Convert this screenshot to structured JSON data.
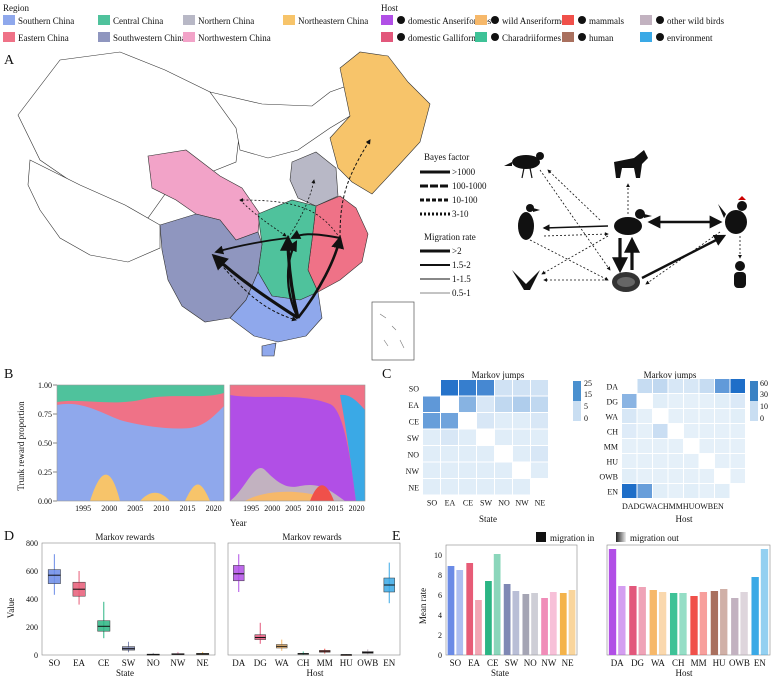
{
  "legend": {
    "region_title": "Region",
    "regions": [
      {
        "label": "Southern China",
        "color": "#8fa8ec"
      },
      {
        "label": "Central China",
        "color": "#4fc29c"
      },
      {
        "label": "Northern China",
        "color": "#b8b8c6"
      },
      {
        "label": "Northeastern China",
        "color": "#f7c46a"
      },
      {
        "label": "Eastern China",
        "color": "#ef7287"
      },
      {
        "label": "Southwestern China",
        "color": "#8f96bf"
      },
      {
        "label": "Northwestern China",
        "color": "#f2a3c8"
      }
    ],
    "host_title": "Host",
    "hosts": [
      {
        "label": "domestic Anseriformes",
        "color": "#b14fe6",
        "icon": "duck-icon"
      },
      {
        "label": "wild Anseriformes",
        "color": "#f6b86a",
        "icon": "wild-duck-icon"
      },
      {
        "label": "mammals",
        "color": "#f0504a",
        "icon": "wolf-icon"
      },
      {
        "label": "other wild birds",
        "color": "#c2b2c0",
        "icon": "bird-icon"
      },
      {
        "label": "domestic Galliformes",
        "color": "#e2577b",
        "icon": "rooster-icon"
      },
      {
        "label": "Charadriiformes",
        "color": "#3ec297",
        "icon": "shorebird-icon"
      },
      {
        "label": "human",
        "color": "#a9705e",
        "icon": "human-icon"
      },
      {
        "label": "environment",
        "color": "#3aa9e6",
        "icon": "environment-icon"
      }
    ]
  },
  "panels": {
    "a": "A",
    "b": "B",
    "c": "C",
    "d": "D",
    "e": "E"
  },
  "bayes": {
    "title": "Bayes factor",
    "items": [
      ">1000",
      "100-1000",
      "10-100",
      "3-10"
    ],
    "migration_title": "Migration rate",
    "migration_items": [
      ">2",
      "1.5-2",
      "1-1.5",
      "0.5-1"
    ]
  },
  "panel_b": {
    "ylabel": "Trunk reward proportion",
    "xlabel": "Year",
    "yticks": [
      "1.00",
      "0.75",
      "0.50",
      "0.25",
      "0.00"
    ],
    "xticks_left": [
      "1995",
      "2000",
      "2005",
      "2010",
      "2015",
      "2020"
    ],
    "xticks_right": [
      "1995",
      "2000",
      "2005",
      "2010",
      "2015",
      "2020"
    ]
  },
  "panel_c": {
    "title_left": "Markov jumps",
    "title_right": "Markov jumps",
    "xlabel_left": "State",
    "xlabel_right": "Host",
    "state_labels": [
      "SO",
      "EA",
      "CE",
      "SW",
      "NO",
      "NW",
      "NE"
    ],
    "host_labels": [
      "DA",
      "DG",
      "WA",
      "CH",
      "MM",
      "HU",
      "OWB",
      "EN"
    ],
    "host_xtick_text": "DADGWACHMMHUOWBEN",
    "scale_left": [
      "25",
      "15",
      "5",
      "0"
    ],
    "scale_right": [
      "60",
      "30",
      "10",
      "0"
    ]
  },
  "chart_data": [
    {
      "type": "heatmap",
      "title": "Markov jumps",
      "rows": [
        "SO",
        "EA",
        "CE",
        "SW",
        "NO",
        "NW",
        "NE"
      ],
      "cols": [
        "SO",
        "EA",
        "CE",
        "SW",
        "NO",
        "NW",
        "NE"
      ],
      "values": [
        [
          0,
          24,
          22,
          20,
          3,
          3,
          3
        ],
        [
          17,
          0,
          12,
          2,
          5,
          7,
          5
        ],
        [
          16,
          15,
          0,
          2,
          1,
          1,
          2
        ],
        [
          1,
          2,
          1,
          0,
          1,
          1,
          1
        ],
        [
          1,
          1,
          1,
          1,
          0,
          1,
          2
        ],
        [
          1,
          1,
          1,
          1,
          1,
          0,
          1
        ],
        [
          1,
          1,
          1,
          1,
          1,
          1,
          0
        ]
      ],
      "range": [
        0,
        25
      ]
    },
    {
      "type": "heatmap",
      "title": "Markov jumps",
      "rows": [
        "DA",
        "DG",
        "WA",
        "CH",
        "MM",
        "HU",
        "OWB",
        "EN"
      ],
      "cols": [
        "DA",
        "DG",
        "WA",
        "CH",
        "MM",
        "HU",
        "OWB",
        "EN"
      ],
      "values": [
        [
          0,
          10,
          12,
          5,
          5,
          10,
          40,
          60
        ],
        [
          28,
          0,
          2,
          1,
          1,
          1,
          2,
          4
        ],
        [
          5,
          1,
          0,
          1,
          1,
          1,
          1,
          2
        ],
        [
          3,
          1,
          9,
          0,
          1,
          1,
          1,
          1
        ],
        [
          1,
          1,
          1,
          1,
          0,
          1,
          1,
          1
        ],
        [
          1,
          1,
          1,
          1,
          1,
          0,
          1,
          1
        ],
        [
          2,
          1,
          1,
          1,
          1,
          1,
          0,
          1
        ],
        [
          60,
          38,
          2,
          1,
          2,
          1,
          2,
          0
        ]
      ],
      "range": [
        0,
        60
      ]
    },
    {
      "type": "box",
      "title": "Markov rewards",
      "xlabel": "State",
      "ylabel": "Value",
      "categories": [
        "SO",
        "EA",
        "CE",
        "SW",
        "NO",
        "NW",
        "NE"
      ],
      "colors": [
        "#6b8be6",
        "#e75c77",
        "#2bb584",
        "#7f88b4",
        "#a5a5b4",
        "#f08cb8",
        "#f4b34a"
      ],
      "stats": [
        {
          "min": 430,
          "q1": 510,
          "median": 570,
          "q3": 610,
          "max": 720
        },
        {
          "min": 360,
          "q1": 420,
          "median": 470,
          "q3": 520,
          "max": 600
        },
        {
          "min": 120,
          "q1": 170,
          "median": 205,
          "q3": 245,
          "max": 380
        },
        {
          "min": 20,
          "q1": 35,
          "median": 45,
          "q3": 60,
          "max": 95
        },
        {
          "min": 0,
          "q1": 2,
          "median": 4,
          "q3": 6,
          "max": 15
        },
        {
          "min": 0,
          "q1": 3,
          "median": 6,
          "q3": 10,
          "max": 22
        },
        {
          "min": 0,
          "q1": 3,
          "median": 7,
          "q3": 12,
          "max": 22
        }
      ],
      "ylim": [
        0,
        800
      ],
      "yticks": [
        0,
        200,
        400,
        600,
        800
      ]
    },
    {
      "type": "box",
      "title": "Markov rewards",
      "xlabel": "Host",
      "categories": [
        "DA",
        "DG",
        "WA",
        "CH",
        "MM",
        "HU",
        "OWB",
        "EN"
      ],
      "colors": [
        "#b14fe6",
        "#e2577b",
        "#f6b86a",
        "#3ec297",
        "#f0504a",
        "#a9705e",
        "#c2b2c0",
        "#3aa9e6"
      ],
      "stats": [
        {
          "min": 450,
          "q1": 530,
          "median": 580,
          "q3": 640,
          "max": 720
        },
        {
          "min": 80,
          "q1": 110,
          "median": 125,
          "q3": 145,
          "max": 230
        },
        {
          "min": 30,
          "q1": 50,
          "median": 62,
          "q3": 75,
          "max": 110
        },
        {
          "min": 0,
          "q1": 5,
          "median": 8,
          "q3": 12,
          "max": 25
        },
        {
          "min": 10,
          "q1": 20,
          "median": 27,
          "q3": 33,
          "max": 45
        },
        {
          "min": 0,
          "q1": 1,
          "median": 2,
          "q3": 3,
          "max": 5
        },
        {
          "min": 5,
          "q1": 12,
          "median": 18,
          "q3": 25,
          "max": 40
        },
        {
          "min": 370,
          "q1": 450,
          "median": 500,
          "q3": 550,
          "max": 660
        }
      ],
      "ylim": [
        0,
        800
      ]
    },
    {
      "type": "bar",
      "title": "Mean rate",
      "xlabel": "State",
      "ylabel": "Mean rate",
      "categories": [
        "SO",
        "EA",
        "CE",
        "SW",
        "NO",
        "NW",
        "NE"
      ],
      "series": [
        {
          "name": "migration in",
          "values": [
            8.9,
            9.2,
            7.4,
            7.1,
            6.1,
            5.7,
            6.2
          ]
        },
        {
          "name": "migration out",
          "values": [
            8.5,
            5.5,
            10.1,
            6.4,
            6.2,
            6.3,
            6.5
          ]
        }
      ],
      "colors": [
        "#6b8be6",
        "#e75c77",
        "#2bb584",
        "#7f88b4",
        "#a5a5b4",
        "#f08cb8",
        "#f4b34a"
      ],
      "ylim": [
        0,
        11
      ],
      "yticks": [
        0,
        2,
        4,
        6,
        8,
        10
      ],
      "legend": [
        "migration in",
        "migration out"
      ]
    },
    {
      "type": "bar",
      "xlabel": "Host",
      "categories": [
        "DA",
        "DG",
        "WA",
        "CH",
        "MM",
        "HU",
        "OWB",
        "EN"
      ],
      "series": [
        {
          "name": "migration in",
          "values": [
            10.6,
            6.9,
            6.5,
            6.2,
            5.9,
            6.4,
            5.7,
            7.8
          ]
        },
        {
          "name": "migration out",
          "values": [
            6.9,
            6.8,
            6.3,
            6.2,
            6.3,
            6.6,
            6.3,
            10.6
          ]
        }
      ],
      "colors": [
        "#b14fe6",
        "#e2577b",
        "#f6b86a",
        "#3ec297",
        "#f0504a",
        "#a9705e",
        "#c2b2c0",
        "#3aa9e6"
      ],
      "ylim": [
        0,
        11
      ]
    }
  ],
  "panel_d": {
    "title_left": "Markov rewards",
    "title_right": "Markov rewards",
    "ylabel": "Value",
    "xlabel_left": "State",
    "xlabel_right": "Host",
    "yticks": [
      "800",
      "600",
      "400",
      "200",
      "0"
    ]
  },
  "panel_e": {
    "ylabel": "Mean rate",
    "xlabel_left": "State",
    "xlabel_right": "Host",
    "legend_in": "migration in",
    "legend_out": "migration out",
    "yticks": [
      "10",
      "8",
      "6",
      "4",
      "2",
      "0"
    ]
  }
}
